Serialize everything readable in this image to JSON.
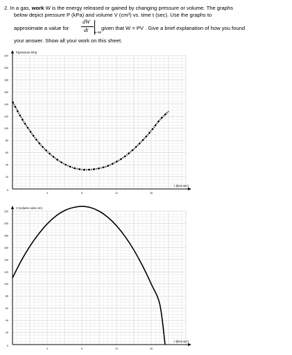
{
  "question": {
    "number": "2.",
    "line1_pre": "In a gas, ",
    "line1_bold": "work",
    "line1_post": " W is the energy released or gained by changing pressure or volume.  The graphs",
    "line2": "below depict pressure P (kPa) and volume V (cm³) vs. time t (sec).  Use the graphs to",
    "line3_pre": "approximate a value for",
    "deriv_num": "dW",
    "deriv_den": "dt",
    "deriv_eval": "t=14",
    "line3_post": "given that W = PV .  Give a brief explanation of how you found",
    "line4": "your answer.  Show all your work on this sheet."
  },
  "chart_data": [
    {
      "type": "line",
      "title": "",
      "ylabel": "P(pressure kPa)",
      "xlabel": "t (time sec)",
      "xlim": [
        0,
        20
      ],
      "ylim": [
        0,
        220
      ],
      "x_ticks": [
        4,
        8,
        12,
        16
      ],
      "y_ticks": [
        20,
        40,
        60,
        80,
        100,
        120,
        140,
        160,
        180,
        200,
        220
      ],
      "line_style": "dash-dot",
      "series": [
        {
          "x": [
            0,
            1,
            2,
            3,
            4,
            5,
            6,
            7,
            8,
            9,
            10,
            11,
            12,
            13,
            14,
            15,
            16,
            17,
            18
          ],
          "values": [
            144,
            118,
            96,
            77,
            62,
            50,
            41,
            35,
            32,
            32,
            34,
            38,
            45,
            54,
            66,
            80,
            96,
            114,
            128
          ]
        }
      ]
    },
    {
      "type": "line",
      "title": "",
      "ylabel": "V (volume cubic cm)",
      "xlabel": "t (time sec)",
      "xlim": [
        0,
        20
      ],
      "ylim": [
        0,
        220
      ],
      "x_ticks": [
        4,
        8,
        12,
        16
      ],
      "y_ticks": [
        20,
        40,
        60,
        80,
        100,
        120,
        140,
        160,
        180,
        200,
        220
      ],
      "line_style": "solid",
      "series": [
        {
          "x": [
            0,
            1,
            2,
            3,
            4,
            5,
            6,
            7,
            8,
            9,
            10,
            11,
            12,
            13,
            14,
            15,
            16,
            17,
            17.6
          ],
          "values": [
            110,
            138,
            162,
            182,
            199,
            212,
            221,
            226,
            228,
            226,
            220,
            210,
            196,
            178,
            156,
            130,
            100,
            66,
            0
          ]
        }
      ]
    }
  ]
}
